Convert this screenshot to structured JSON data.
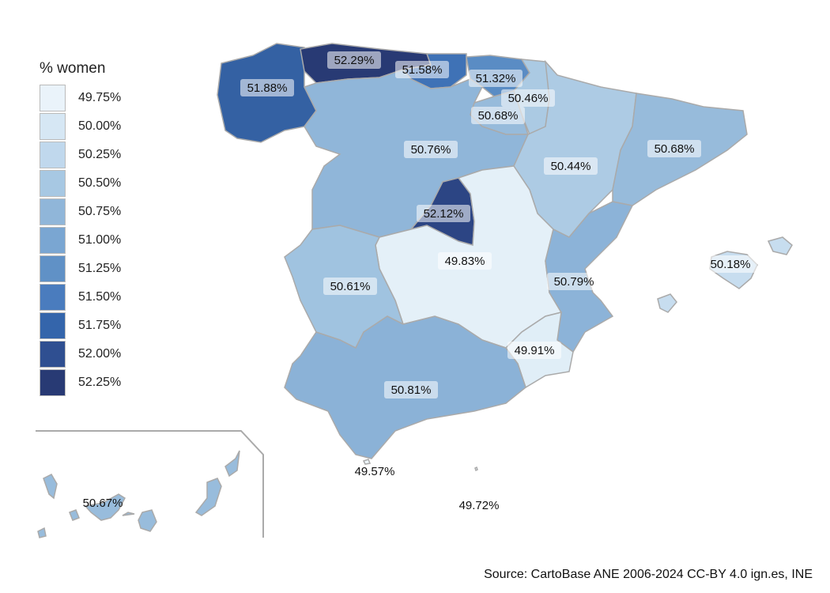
{
  "legend": {
    "title": "% women",
    "items": [
      {
        "label": "49.75%",
        "color": "#eaf3fa"
      },
      {
        "label": "50.00%",
        "color": "#d6e7f4"
      },
      {
        "label": "50.25%",
        "color": "#c0d8ed"
      },
      {
        "label": "50.50%",
        "color": "#a7c8e3"
      },
      {
        "label": "50.75%",
        "color": "#90b6d9"
      },
      {
        "label": "51.00%",
        "color": "#7aa6d2"
      },
      {
        "label": "51.25%",
        "color": "#6091c6"
      },
      {
        "label": "51.50%",
        "color": "#4a7cbe"
      },
      {
        "label": "51.75%",
        "color": "#3465ab"
      },
      {
        "label": "52.00%",
        "color": "#2f4f91"
      },
      {
        "label": "52.25%",
        "color": "#283a74"
      }
    ]
  },
  "regions": [
    {
      "id": "galicia",
      "value": "51.88%",
      "color": "#3461a3",
      "boxed": true
    },
    {
      "id": "asturias",
      "value": "52.29%",
      "color": "#283a74",
      "boxed": true
    },
    {
      "id": "cantabria",
      "value": "51.58%",
      "color": "#3f72b6",
      "boxed": true
    },
    {
      "id": "pais-vasco",
      "value": "51.32%",
      "color": "#5a8cc4",
      "boxed": true
    },
    {
      "id": "navarra",
      "value": "50.46%",
      "color": "#abcae3",
      "boxed": true
    },
    {
      "id": "la-rioja",
      "value": "50.68%",
      "color": "#97bbdb",
      "boxed": true
    },
    {
      "id": "castilla-y-leon",
      "value": "50.76%",
      "color": "#90b6d9",
      "boxed": true
    },
    {
      "id": "aragon",
      "value": "50.44%",
      "color": "#adcbe4",
      "boxed": true
    },
    {
      "id": "cataluna",
      "value": "50.68%",
      "color": "#97bbdb",
      "boxed": true
    },
    {
      "id": "madrid",
      "value": "52.12%",
      "color": "#2c4584",
      "boxed": true
    },
    {
      "id": "castilla-la-mancha",
      "value": "49.83%",
      "color": "#e4f0f8",
      "boxed": true
    },
    {
      "id": "extremadura",
      "value": "50.61%",
      "color": "#a0c3e0",
      "boxed": true
    },
    {
      "id": "comunitat-valenciana",
      "value": "50.79%",
      "color": "#8cb3d8",
      "boxed": true
    },
    {
      "id": "illes-balears",
      "value": "50.18%",
      "color": "#c7ddef",
      "boxed": true
    },
    {
      "id": "murcia",
      "value": "49.91%",
      "color": "#e0eef7",
      "boxed": true
    },
    {
      "id": "andalucia",
      "value": "50.81%",
      "color": "#8bb2d7",
      "boxed": true
    },
    {
      "id": "canarias",
      "value": "50.67%",
      "color": "#98bcdc",
      "boxed": false
    },
    {
      "id": "ceuta",
      "value": "49.57%",
      "color": "#eef6fb",
      "boxed": false
    },
    {
      "id": "melilla",
      "value": "49.72%",
      "color": "#eaf3fa",
      "boxed": false
    }
  ],
  "source": "Source: CartoBase ANE 2006-2024 CC-BY 4.0 ign.es, INE"
}
